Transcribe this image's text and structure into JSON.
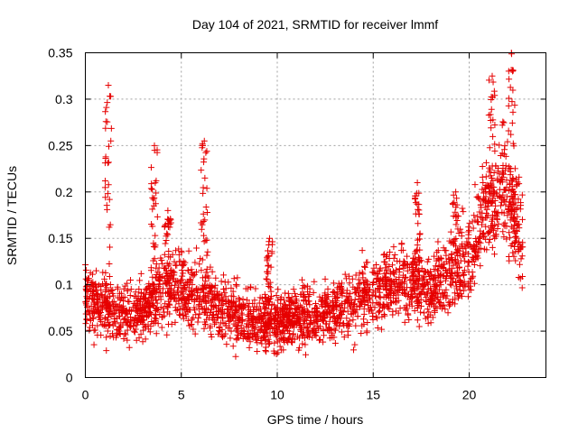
{
  "chart_data": {
    "type": "scatter",
    "title": "Day 104 of 2021, SRMTID for receiver lmmf",
    "xlabel": "GPS time / hours",
    "ylabel": "SRMTID / TECUs",
    "xlim": [
      0,
      24
    ],
    "ylim": [
      0,
      0.35
    ],
    "grid": true,
    "marker": "+",
    "colors": {
      "points": "#e60000",
      "grid": "#a0a0a0",
      "axes": "#000000"
    },
    "x_ticks": [
      "0",
      "5",
      "10",
      "15",
      "20"
    ],
    "x_tick_values": [
      0,
      5,
      10,
      15,
      20
    ],
    "y_ticks": [
      "0",
      "0.05",
      "0.1",
      "0.15",
      "0.2",
      "0.25",
      "0.3",
      "0.35"
    ],
    "y_tick_values": [
      0,
      0.05,
      0.1,
      0.15,
      0.2,
      0.25,
      0.3,
      0.35
    ],
    "series": [
      {
        "name": "SRMTID",
        "trend": {
          "x": [
            0,
            1,
            2,
            3,
            4,
            5,
            6,
            7,
            8,
            9,
            10,
            11,
            12,
            13,
            14,
            15,
            16,
            17,
            18,
            19,
            20,
            21,
            22,
            22.8
          ],
          "y": [
            0.085,
            0.078,
            0.07,
            0.07,
            0.095,
            0.1,
            0.088,
            0.075,
            0.068,
            0.062,
            0.06,
            0.063,
            0.066,
            0.072,
            0.082,
            0.092,
            0.1,
            0.105,
            0.095,
            0.11,
            0.13,
            0.19,
            0.21,
            0.14
          ]
        },
        "bursts": [
          {
            "x": 1.2,
            "ymin": 0.1,
            "ymax": 0.315
          },
          {
            "x": 3.6,
            "ymin": 0.1,
            "ymax": 0.25
          },
          {
            "x": 4.3,
            "ymin": 0.1,
            "ymax": 0.18
          },
          {
            "x": 6.2,
            "ymin": 0.11,
            "ymax": 0.255
          },
          {
            "x": 9.6,
            "ymin": 0.08,
            "ymax": 0.15
          },
          {
            "x": 17.3,
            "ymin": 0.1,
            "ymax": 0.21
          },
          {
            "x": 19.3,
            "ymin": 0.1,
            "ymax": 0.2
          },
          {
            "x": 21.2,
            "ymin": 0.15,
            "ymax": 0.325
          },
          {
            "x": 22.2,
            "ymin": 0.12,
            "ymax": 0.35
          }
        ],
        "n_points": 2600
      }
    ]
  }
}
